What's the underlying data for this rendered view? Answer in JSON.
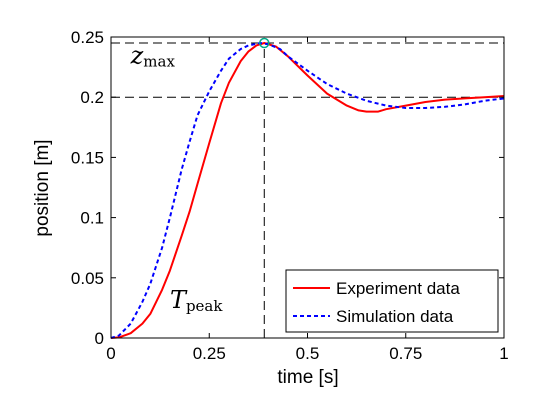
{
  "chart_data": {
    "type": "line",
    "title": "",
    "xlabel": "time [s]",
    "ylabel": "position [m]",
    "xlim": [
      0,
      1
    ],
    "ylim": [
      0,
      0.25
    ],
    "xticks": [
      0,
      0.25,
      0.5,
      0.75,
      1
    ],
    "xtick_labels": [
      "0",
      "0.25",
      "0.5",
      "0.75",
      "1"
    ],
    "yticks": [
      0,
      0.05,
      0.1,
      0.15,
      0.2,
      0.25
    ],
    "ytick_labels": [
      "0",
      "0.05",
      "0.1",
      "0.15",
      "0.2",
      "0.25"
    ],
    "grid": false,
    "legend_position": "bottom-right",
    "series": [
      {
        "name": "Experiment data",
        "color": "#ff0000",
        "style": "solid",
        "x": [
          0,
          0.02,
          0.05,
          0.08,
          0.1,
          0.13,
          0.15,
          0.18,
          0.2,
          0.22,
          0.25,
          0.28,
          0.3,
          0.33,
          0.35,
          0.37,
          0.39,
          0.42,
          0.45,
          0.5,
          0.55,
          0.6,
          0.63,
          0.65,
          0.68,
          0.7,
          0.75,
          0.8,
          0.85,
          0.9,
          0.95,
          1.0
        ],
        "values": [
          0,
          0.0005,
          0.004,
          0.012,
          0.02,
          0.04,
          0.056,
          0.085,
          0.105,
          0.128,
          0.162,
          0.195,
          0.212,
          0.23,
          0.238,
          0.243,
          0.245,
          0.242,
          0.234,
          0.218,
          0.203,
          0.193,
          0.189,
          0.188,
          0.188,
          0.19,
          0.193,
          0.196,
          0.198,
          0.199,
          0.2,
          0.201
        ]
      },
      {
        "name": "Simulation data",
        "color": "#0000ff",
        "style": "dashed",
        "x": [
          0,
          0.02,
          0.05,
          0.08,
          0.1,
          0.13,
          0.15,
          0.18,
          0.2,
          0.22,
          0.25,
          0.28,
          0.3,
          0.33,
          0.35,
          0.38,
          0.4,
          0.43,
          0.45,
          0.5,
          0.55,
          0.6,
          0.65,
          0.7,
          0.75,
          0.8,
          0.85,
          0.9,
          0.95,
          1.0
        ],
        "values": [
          0,
          0.002,
          0.012,
          0.03,
          0.045,
          0.075,
          0.1,
          0.14,
          0.163,
          0.185,
          0.205,
          0.222,
          0.232,
          0.24,
          0.243,
          0.245,
          0.244,
          0.24,
          0.234,
          0.222,
          0.211,
          0.203,
          0.197,
          0.193,
          0.191,
          0.191,
          0.192,
          0.194,
          0.197,
          0.199
        ]
      }
    ],
    "reference_lines": {
      "x": 0.39,
      "y": [
        0.245,
        0.2
      ]
    },
    "peak_marker": {
      "x": 0.39,
      "y": 0.245,
      "color": "#00aa88"
    },
    "annotations": {
      "zmax": {
        "main": "z",
        "sub": "max",
        "x": 0.05,
        "y": 0.228
      },
      "tpeak": {
        "main": "T",
        "sub": "peak",
        "x": 0.15,
        "y": 0.025
      }
    }
  }
}
